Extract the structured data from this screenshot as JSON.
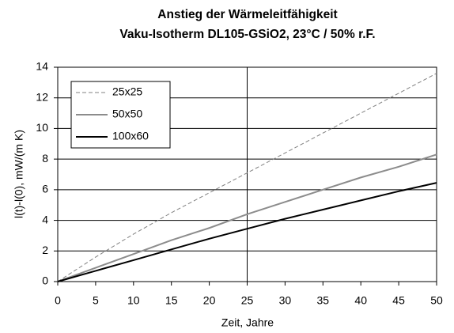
{
  "chart_data": {
    "type": "line",
    "title": "Anstieg der Wärmeleitfähigkeit",
    "subtitle": "Vaku-Isotherm DL105-GSiO2, 23°C / 50% r.F.",
    "x_label": "Zeit, Jahre",
    "y_label": "l(t)-l(0), mW/(m K)",
    "x": [
      0,
      5,
      10,
      15,
      20,
      25,
      30,
      35,
      40,
      45,
      50
    ],
    "series": [
      {
        "name": "25x25",
        "color": "#808080",
        "dashed": true,
        "values": [
          0,
          1.6,
          3.1,
          4.5,
          5.8,
          7.1,
          8.4,
          9.7,
          11.0,
          12.3,
          13.6
        ]
      },
      {
        "name": "50x50",
        "color": "#8c8c8c",
        "dashed": false,
        "values": [
          0,
          0.9,
          1.8,
          2.7,
          3.5,
          4.4,
          5.2,
          6.0,
          6.8,
          7.5,
          8.3
        ]
      },
      {
        "name": "100x60",
        "color": "#000000",
        "dashed": false,
        "values": [
          0,
          0.7,
          1.4,
          2.1,
          2.8,
          3.45,
          4.1,
          4.7,
          5.3,
          5.9,
          6.45
        ]
      }
    ],
    "xlim": [
      0,
      50
    ],
    "xticks": [
      0,
      5,
      10,
      15,
      20,
      25,
      30,
      35,
      40,
      45,
      50
    ],
    "ylim": [
      0,
      14
    ],
    "yticks": [
      0,
      2,
      4,
      6,
      8,
      10,
      12,
      14
    ],
    "grid": true,
    "legend": "upper left"
  }
}
